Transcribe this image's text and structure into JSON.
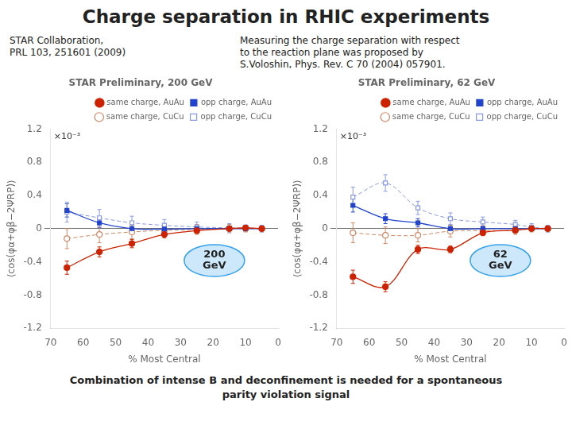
{
  "title": "Charge separation in RHIC experiments",
  "annotations": [
    "STAR Collaboration,\nPRL 103, 251601 (2009)",
    "Measuring the charge separation with respect\nto the reaction plane was proposed by\nS.Voloshin, Phys. Rev. C 70 (2004) 057901.",
    "Combination of intense B and deconfinement is needed for a spontaneous\nparity violation signal"
  ],
  "chart_data": [
    {
      "type": "line",
      "title": "STAR Preliminary, 200 GeV",
      "xlabel": "% Most Central",
      "ylabel": "⟨cos(φα+φβ−2ΨRP)⟩",
      "annotations": [
        "×10⁻³",
        "200\nGeV"
      ],
      "x": [
        65,
        55,
        45,
        35,
        25,
        15,
        10,
        5
      ],
      "xlim": [
        70,
        0
      ],
      "xticks": [
        70,
        60,
        50,
        40,
        30,
        20,
        10,
        0
      ],
      "ylim": [
        -1.2,
        1.2
      ],
      "yticks": [
        -1.2,
        -0.8,
        -0.4,
        0,
        0.4,
        0.8,
        1.2
      ],
      "grid": false,
      "legend": "upper right",
      "series": [
        {
          "name": "same charge, AuAu",
          "color": "#cc2200",
          "marker": "circle",
          "line_style": "solid",
          "values": [
            -0.47,
            -0.28,
            -0.18,
            -0.07,
            -0.025,
            0.0,
            0.01,
            0.0
          ],
          "errors": [
            0.08,
            0.06,
            0.05,
            0.04,
            0.03,
            0.025,
            0.02,
            0.02
          ]
        },
        {
          "name": "opp charge, AuAu",
          "color": "#2244cc",
          "marker": "square",
          "line_style": "solid",
          "values": [
            0.22,
            0.07,
            0.0,
            -0.005,
            0.0,
            0.0,
            0.0,
            0.0
          ],
          "errors": [
            0.08,
            0.06,
            0.05,
            0.04,
            0.03,
            0.025,
            0.02,
            0.02
          ]
        },
        {
          "name": "same charge, CuCu",
          "color": "#cc8866",
          "marker": "open_circle",
          "line_style": "dashed",
          "values": [
            -0.12,
            -0.07,
            -0.04,
            -0.02,
            -0.01,
            0.0,
            0.0,
            0.0
          ],
          "errors": [
            0.12,
            0.1,
            0.08,
            0.07,
            0.06,
            0.05,
            0.04,
            0.04
          ]
        },
        {
          "name": "opp charge, CuCu",
          "color": "#8899dd",
          "marker": "open_square",
          "line_style": "dashed",
          "values": [
            0.2,
            0.13,
            0.07,
            0.04,
            0.02,
            0.01,
            0.005,
            0.0
          ],
          "errors": [
            0.12,
            0.1,
            0.08,
            0.07,
            0.06,
            0.05,
            0.04,
            0.04
          ]
        }
      ]
    },
    {
      "type": "line",
      "title": "STAR Preliminary, 62 GeV",
      "xlabel": "% Most Central",
      "ylabel": "⟨cos(φα+φβ−2ΨRP)⟩",
      "annotations": [
        "×10⁻³",
        "62\nGeV"
      ],
      "x": [
        65,
        55,
        45,
        35,
        25,
        15,
        10,
        5
      ],
      "xlim": [
        70,
        0
      ],
      "xticks": [
        70,
        60,
        50,
        40,
        30,
        20,
        10,
        0
      ],
      "ylim": [
        -1.2,
        1.2
      ],
      "yticks": [
        -1.2,
        -0.8,
        -0.4,
        0,
        0.4,
        0.8,
        1.2
      ],
      "grid": false,
      "legend": "upper right",
      "series": [
        {
          "name": "same charge, AuAu",
          "color": "#cc2200",
          "marker": "circle",
          "line_style": "solid",
          "values": [
            -0.58,
            -0.7,
            -0.25,
            -0.25,
            -0.05,
            -0.02,
            0.0,
            0.0
          ],
          "errors": [
            0.08,
            0.06,
            0.05,
            0.04,
            0.03,
            0.025,
            0.02,
            0.02
          ]
        },
        {
          "name": "opp charge, AuAu",
          "color": "#2244cc",
          "marker": "square",
          "line_style": "solid",
          "values": [
            0.28,
            0.12,
            0.07,
            0.0,
            0.0,
            0.0,
            0.0,
            0.0
          ],
          "errors": [
            0.08,
            0.06,
            0.05,
            0.04,
            0.03,
            0.025,
            0.02,
            0.02
          ]
        },
        {
          "name": "same charge, CuCu",
          "color": "#cc8866",
          "marker": "open_circle",
          "line_style": "dashed",
          "values": [
            -0.05,
            -0.08,
            -0.08,
            -0.03,
            -0.025,
            -0.02,
            0.0,
            0.0
          ],
          "errors": [
            0.12,
            0.1,
            0.08,
            0.07,
            0.06,
            0.05,
            0.04,
            0.04
          ]
        },
        {
          "name": "opp charge, CuCu",
          "color": "#8899dd",
          "marker": "open_square",
          "line_style": "dashed",
          "values": [
            0.38,
            0.55,
            0.25,
            0.12,
            0.08,
            0.05,
            0.02,
            0.0
          ],
          "errors": [
            0.12,
            0.1,
            0.08,
            0.07,
            0.06,
            0.05,
            0.04,
            0.04
          ]
        }
      ]
    }
  ]
}
